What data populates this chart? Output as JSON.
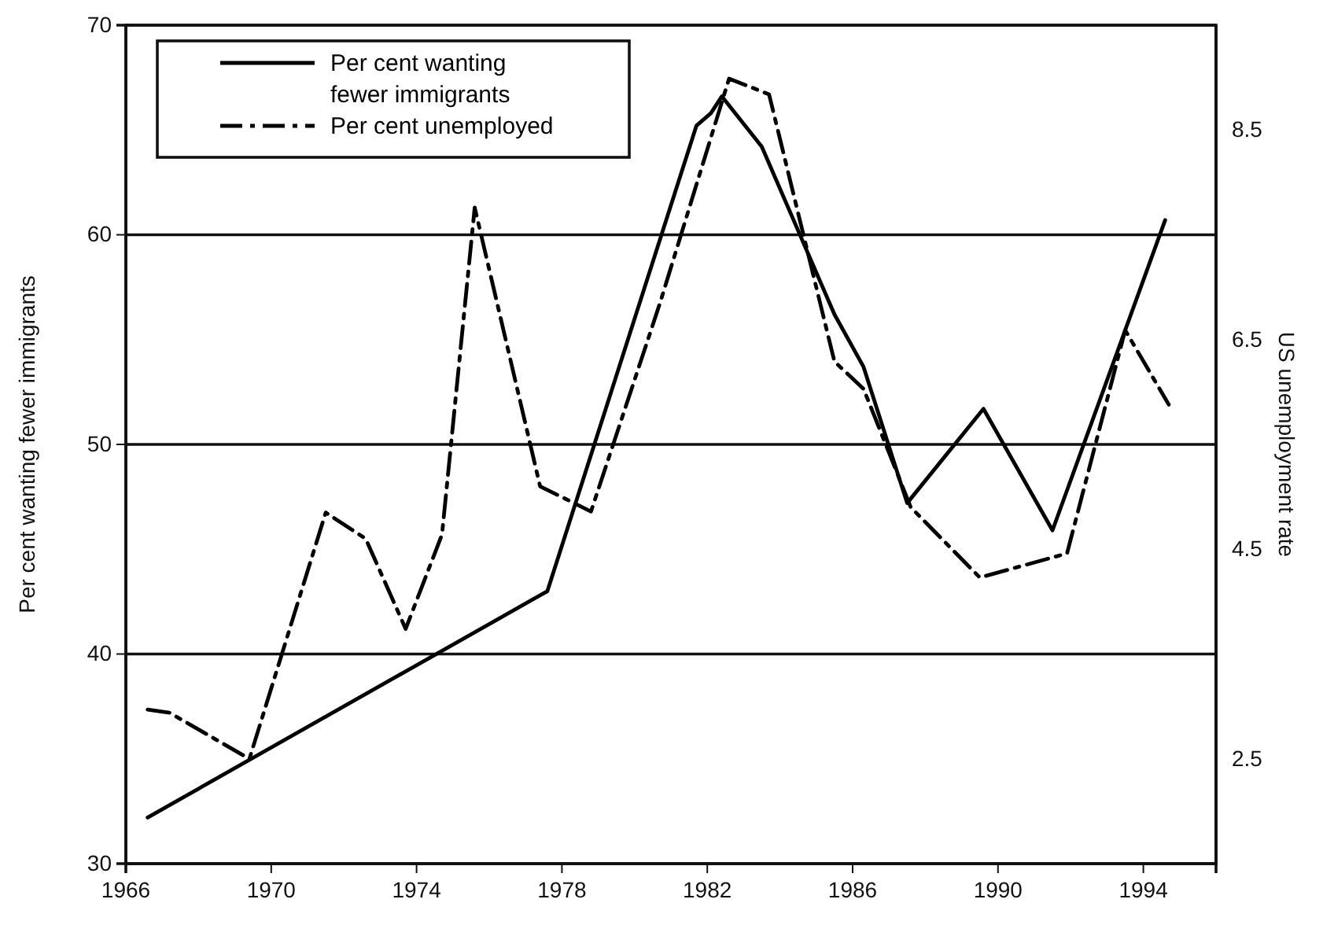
{
  "chart_data": {
    "type": "line",
    "ylabel": "Per cent wanting fewer immigrants",
    "y2label": "US unemployment rate",
    "xlim": [
      1966,
      1996
    ],
    "xticks": [
      1966,
      1970,
      1974,
      1978,
      1982,
      1986,
      1990,
      1994
    ],
    "ylim": [
      30,
      70
    ],
    "yticks": [
      30,
      40,
      50,
      60,
      70
    ],
    "y2lim": [
      1.5,
      9.5
    ],
    "y2ticks": [
      2.5,
      4.5,
      6.5,
      8.5
    ],
    "grid": "y",
    "legend": "top left",
    "series": [
      {
        "name": "Per cent wanting fewer immigrants",
        "color": "#000000",
        "line_style": "solid",
        "x": [
          1966.6,
          1977.6,
          1981.7,
          1982.1,
          1982.4,
          1983.5,
          1984.5,
          1985.5,
          1986.3,
          1987.5,
          1989.6,
          1991.5,
          1994.6
        ],
        "values": [
          32.2,
          43.0,
          65.2,
          65.8,
          66.6,
          64.2,
          60.2,
          56.2,
          53.7,
          47.2,
          51.7,
          45.9,
          60.7
        ]
      },
      {
        "name": "Per cent unemployed",
        "color": "#000000",
        "line_style": "dashdot",
        "axis": "y2",
        "x": [
          1966.6,
          1967.2,
          1969.4,
          1971.5,
          1972.6,
          1973.7,
          1974.7,
          1975.6,
          1977.4,
          1978.8,
          1980.7,
          1982.6,
          1983.7,
          1985.5,
          1986.3,
          1987.6,
          1989.5,
          1991.9,
          1993.5,
          1994.7
        ],
        "values": [
          2.97,
          2.94,
          2.5,
          4.85,
          4.6,
          3.74,
          4.64,
          7.76,
          5.1,
          4.86,
          6.85,
          8.99,
          8.84,
          6.29,
          6.03,
          4.9,
          4.23,
          4.46,
          6.59,
          5.88
        ]
      }
    ]
  }
}
